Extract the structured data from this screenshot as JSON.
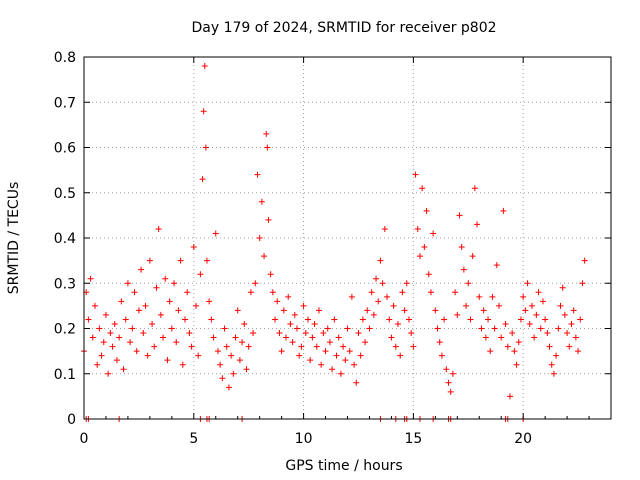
{
  "chart_data": {
    "type": "scatter",
    "title": "Day 179 of 2024, SRMTID for receiver p802",
    "xlabel": "GPS time / hours",
    "ylabel": "SRMTID / TECUs",
    "xlim": [
      0,
      24
    ],
    "ylim": [
      0,
      0.8
    ],
    "x_ticks": [
      0,
      5,
      10,
      15,
      20
    ],
    "y_ticks": [
      0,
      0.1,
      0.2,
      0.3,
      0.4,
      0.5,
      0.6,
      0.7,
      0.8
    ],
    "x_tick_labels": [
      "0",
      "5",
      "10",
      "15",
      "20"
    ],
    "y_tick_labels": [
      "0",
      "0.1",
      "0.2",
      "0.3",
      "0.4",
      "0.5",
      "0.6",
      "0.7",
      "0.8"
    ],
    "grid": true,
    "marker": "+",
    "color": "#ff0000",
    "series": [
      {
        "name": "SRMTID",
        "x": [
          0.0,
          0.1,
          0.2,
          0.3,
          0.4,
          0.5,
          0.6,
          0.7,
          0.8,
          0.9,
          1.0,
          1.1,
          1.2,
          1.3,
          1.4,
          1.5,
          1.6,
          1.7,
          1.8,
          1.9,
          2.0,
          2.1,
          2.2,
          2.3,
          2.4,
          2.5,
          2.6,
          2.7,
          2.8,
          2.9,
          3.0,
          3.1,
          3.2,
          3.3,
          3.4,
          3.5,
          3.6,
          3.7,
          3.8,
          3.9,
          4.0,
          4.1,
          4.2,
          4.3,
          4.4,
          4.5,
          4.6,
          4.7,
          4.8,
          4.9,
          5.0,
          5.1,
          5.2,
          5.3,
          5.4,
          5.45,
          5.5,
          5.55,
          5.6,
          5.7,
          5.8,
          5.9,
          6.0,
          6.1,
          6.2,
          6.3,
          6.4,
          6.5,
          6.6,
          6.7,
          6.8,
          6.9,
          7.0,
          7.1,
          7.2,
          7.3,
          7.4,
          7.5,
          7.6,
          7.7,
          7.8,
          7.9,
          8.0,
          8.1,
          8.2,
          8.3,
          8.35,
          8.4,
          8.5,
          8.6,
          8.7,
          8.8,
          8.9,
          9.0,
          9.1,
          9.2,
          9.3,
          9.4,
          9.5,
          9.6,
          9.7,
          9.8,
          9.9,
          10.0,
          10.1,
          10.2,
          10.3,
          10.4,
          10.5,
          10.6,
          10.7,
          10.8,
          10.9,
          11.0,
          11.1,
          11.2,
          11.3,
          11.4,
          11.5,
          11.6,
          11.7,
          11.8,
          11.9,
          12.0,
          12.1,
          12.2,
          12.3,
          12.4,
          12.5,
          12.6,
          12.7,
          12.8,
          12.9,
          13.0,
          13.1,
          13.2,
          13.3,
          13.4,
          13.5,
          13.6,
          13.7,
          13.8,
          13.9,
          14.0,
          14.1,
          14.2,
          14.3,
          14.4,
          14.5,
          14.6,
          14.7,
          14.8,
          14.9,
          15.0,
          15.1,
          15.2,
          15.3,
          15.4,
          15.5,
          15.6,
          15.7,
          15.8,
          15.9,
          16.0,
          16.1,
          16.2,
          16.3,
          16.4,
          16.5,
          16.6,
          16.7,
          16.8,
          16.9,
          17.0,
          17.1,
          17.2,
          17.3,
          17.4,
          17.5,
          17.6,
          17.7,
          17.8,
          17.9,
          18.0,
          18.1,
          18.2,
          18.3,
          18.4,
          18.5,
          18.6,
          18.7,
          18.8,
          18.9,
          19.0,
          19.1,
          19.2,
          19.3,
          19.4,
          19.5,
          19.6,
          19.7,
          19.8,
          19.9,
          20.0,
          20.1,
          20.2,
          20.3,
          20.4,
          20.5,
          20.6,
          20.7,
          20.8,
          20.9,
          21.0,
          21.1,
          21.2,
          21.3,
          21.4,
          21.5,
          21.6,
          21.7,
          21.8,
          21.9,
          22.0,
          22.1,
          22.2,
          22.3,
          22.4,
          22.5,
          22.6,
          22.7,
          22.8
        ],
        "y": [
          0.15,
          0.28,
          0.22,
          0.31,
          0.18,
          0.25,
          0.12,
          0.2,
          0.14,
          0.17,
          0.23,
          0.1,
          0.19,
          0.16,
          0.21,
          0.13,
          0.18,
          0.26,
          0.11,
          0.22,
          0.3,
          0.17,
          0.2,
          0.28,
          0.15,
          0.24,
          0.33,
          0.19,
          0.25,
          0.14,
          0.35,
          0.21,
          0.16,
          0.29,
          0.42,
          0.23,
          0.18,
          0.31,
          0.13,
          0.26,
          0.2,
          0.3,
          0.17,
          0.24,
          0.35,
          0.12,
          0.22,
          0.28,
          0.19,
          0.16,
          0.38,
          0.25,
          0.14,
          0.32,
          0.53,
          0.68,
          0.78,
          0.6,
          0.35,
          0.26,
          0.22,
          0.18,
          0.41,
          0.15,
          0.12,
          0.09,
          0.2,
          0.16,
          0.07,
          0.14,
          0.1,
          0.18,
          0.24,
          0.13,
          0.17,
          0.21,
          0.11,
          0.16,
          0.28,
          0.19,
          0.3,
          0.54,
          0.4,
          0.48,
          0.36,
          0.63,
          0.6,
          0.44,
          0.32,
          0.28,
          0.22,
          0.26,
          0.19,
          0.15,
          0.24,
          0.18,
          0.27,
          0.21,
          0.17,
          0.23,
          0.2,
          0.14,
          0.16,
          0.25,
          0.19,
          0.22,
          0.13,
          0.18,
          0.21,
          0.16,
          0.24,
          0.12,
          0.19,
          0.15,
          0.2,
          0.17,
          0.11,
          0.22,
          0.14,
          0.18,
          0.1,
          0.16,
          0.13,
          0.2,
          0.15,
          0.27,
          0.12,
          0.08,
          0.19,
          0.14,
          0.22,
          0.17,
          0.24,
          0.2,
          0.28,
          0.23,
          0.31,
          0.26,
          0.35,
          0.3,
          0.42,
          0.27,
          0.22,
          0.18,
          0.25,
          0.16,
          0.21,
          0.14,
          0.28,
          0.24,
          0.3,
          0.22,
          0.19,
          0.16,
          0.54,
          0.42,
          0.36,
          0.51,
          0.38,
          0.46,
          0.32,
          0.28,
          0.41,
          0.24,
          0.2,
          0.17,
          0.14,
          0.22,
          0.11,
          0.08,
          0.06,
          0.1,
          0.28,
          0.23,
          0.45,
          0.38,
          0.33,
          0.25,
          0.3,
          0.22,
          0.36,
          0.51,
          0.43,
          0.27,
          0.2,
          0.24,
          0.18,
          0.22,
          0.15,
          0.27,
          0.2,
          0.34,
          0.25,
          0.18,
          0.46,
          0.21,
          0.16,
          0.05,
          0.19,
          0.15,
          0.12,
          0.17,
          0.22,
          0.27,
          0.24,
          0.3,
          0.21,
          0.25,
          0.18,
          0.23,
          0.28,
          0.2,
          0.26,
          0.22,
          0.19,
          0.16,
          0.12,
          0.1,
          0.14,
          0.2,
          0.25,
          0.29,
          0.23,
          0.19,
          0.16,
          0.21,
          0.24,
          0.18,
          0.15,
          0.22,
          0.3,
          0.35
        ]
      }
    ],
    "zero_level_markers_x": [
      0.1,
      0.2,
      1.6,
      5.3,
      5.6,
      5.7,
      7.2,
      13.5,
      14.2,
      14.6,
      14.7,
      15.3,
      15.9,
      16.6,
      16.7,
      19.2,
      19.3,
      20.0
    ]
  }
}
